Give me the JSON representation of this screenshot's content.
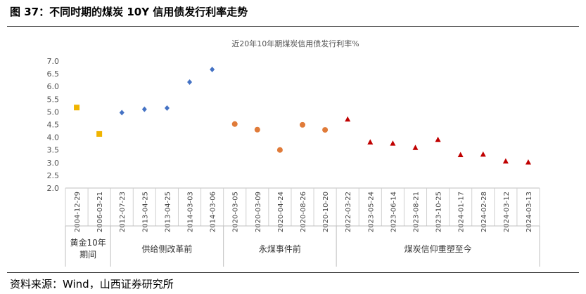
{
  "figure_title": "图 37：不同时期的煤炭 10Y 信用债发行利率走势",
  "source": "资料来源：Wind，山西证券研究所",
  "chart_data": {
    "type": "scatter",
    "title": "近20年10年期煤炭信用债发行利率%",
    "ylim": [
      2.0,
      7.0
    ],
    "yticks": [
      "7.0",
      "6.5",
      "6.0",
      "5.5",
      "5.0",
      "4.5",
      "4.0",
      "3.5",
      "3.0",
      "2.5",
      "2.0"
    ],
    "grid": false,
    "categories": [
      "2004-12-29",
      "2006-03-21",
      "2012-07-23",
      "2013-04-25",
      "2013-04-25",
      "2014-03-03",
      "2014-03-06",
      "2020-03-05",
      "2020-03-09",
      "2020-04-24",
      "2020-08-26",
      "2020-10-20",
      "2022-03-22",
      "2023-05-24",
      "2023-06-14",
      "2023-08-21",
      "2023-10-25",
      "2024-01-17",
      "2024-02-28",
      "2024-03-12",
      "2024-03-13"
    ],
    "series": [
      {
        "marker": "square",
        "color": "#F0B400",
        "indices": [
          0,
          1
        ],
        "values": [
          5.17,
          4.13
        ]
      },
      {
        "marker": "diamond",
        "color": "#4472C4",
        "indices": [
          2,
          3,
          4,
          5,
          6
        ],
        "values": [
          4.97,
          5.1,
          5.15,
          6.17,
          6.67
        ]
      },
      {
        "marker": "circle",
        "color": "#E07B39",
        "indices": [
          7,
          8,
          9,
          10,
          11
        ],
        "values": [
          4.52,
          4.3,
          3.5,
          4.49,
          4.29
        ]
      },
      {
        "marker": "triangle",
        "color": "#C00000",
        "indices": [
          12,
          13,
          14,
          15,
          16,
          17,
          18,
          19,
          20
        ],
        "values": [
          4.7,
          3.8,
          3.75,
          3.58,
          3.9,
          3.3,
          3.32,
          3.05,
          3.01
        ]
      }
    ],
    "groups": [
      {
        "label": "黄金10年期间",
        "lines": [
          "黄金10年",
          "期间"
        ],
        "start": 0,
        "end": 1
      },
      {
        "label": "供给侧改革前",
        "lines": [
          "供给侧改革前"
        ],
        "start": 2,
        "end": 6
      },
      {
        "label": "永煤事件前",
        "lines": [
          "永煤事件前"
        ],
        "start": 7,
        "end": 11
      },
      {
        "label": "煤炭信仰重塑至今",
        "lines": [
          "煤炭信仰重塑至今"
        ],
        "start": 12,
        "end": 20
      }
    ]
  }
}
